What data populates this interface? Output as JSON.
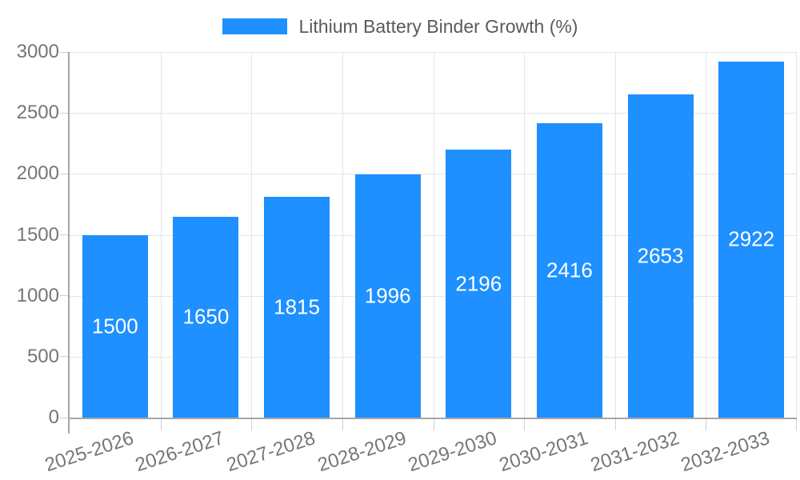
{
  "chart_data": {
    "type": "bar",
    "title": "",
    "xlabel": "",
    "ylabel": "",
    "legend": {
      "label": "Lithium Battery Binder Growth (%)",
      "position": "top-center"
    },
    "categories": [
      "2025-2026",
      "2026-2027",
      "2027-2028",
      "2028-2029",
      "2029-2030",
      "2030-2031",
      "2031-2032",
      "2032-2033"
    ],
    "series": [
      {
        "name": "Lithium Battery Binder Growth (%)",
        "values": [
          1500,
          1650,
          1815,
          1996,
          2196,
          2416,
          2653,
          2922
        ]
      }
    ],
    "ylim": [
      0,
      3000
    ],
    "yticks": [
      0,
      500,
      1000,
      1500,
      2000,
      2500,
      3000
    ],
    "grid": "both",
    "xlabel_rotation_deg": -18,
    "colors": {
      "bar": "#1E90FF",
      "bar_value_text": "#ffffff",
      "grid": "#e4e4e4",
      "axis": "#a6a6a6",
      "tick": "#cfcfcf",
      "tick_label_text": "#767676",
      "legend_text": "#5a5a5a",
      "background": "#ffffff"
    }
  }
}
